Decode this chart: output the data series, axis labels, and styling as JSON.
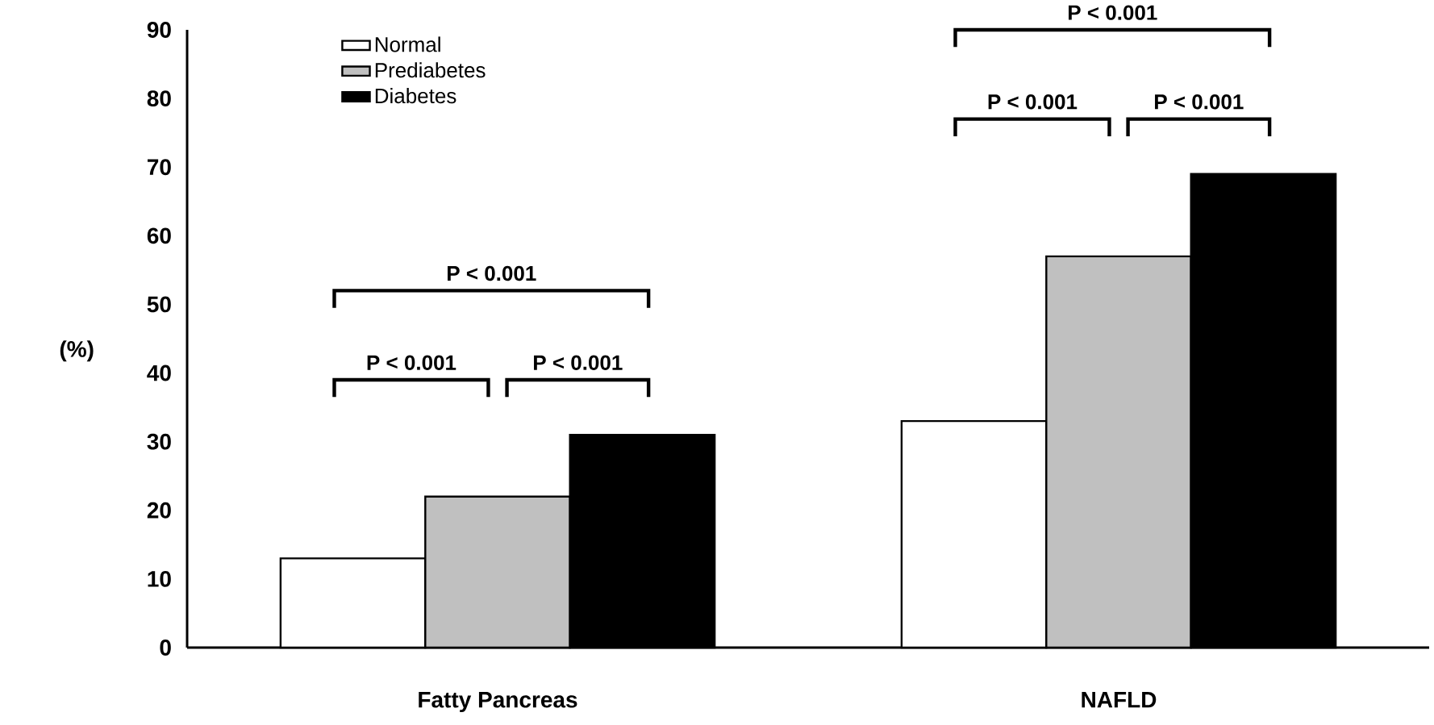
{
  "chart_data": {
    "type": "bar",
    "ylabel": "(%)",
    "categories": [
      "Fatty Pancreas",
      "NAFLD"
    ],
    "series": [
      {
        "name": "Normal",
        "color": "#ffffff",
        "values": [
          13,
          33
        ]
      },
      {
        "name": "Prediabetes",
        "color": "#c0c0c0",
        "values": [
          22,
          57
        ]
      },
      {
        "name": "Diabetes",
        "color": "#000000",
        "values": [
          31,
          69
        ]
      }
    ],
    "ylim": [
      0,
      90
    ],
    "yticks": [
      0,
      10,
      20,
      30,
      40,
      50,
      60,
      70,
      80,
      90
    ],
    "grid": false,
    "legend": "top left",
    "annotations": [
      "P < 0.001",
      "P < 0.001",
      "P < 0.001",
      "P < 0.001",
      "P < 0.001",
      "P < 0.001"
    ]
  }
}
